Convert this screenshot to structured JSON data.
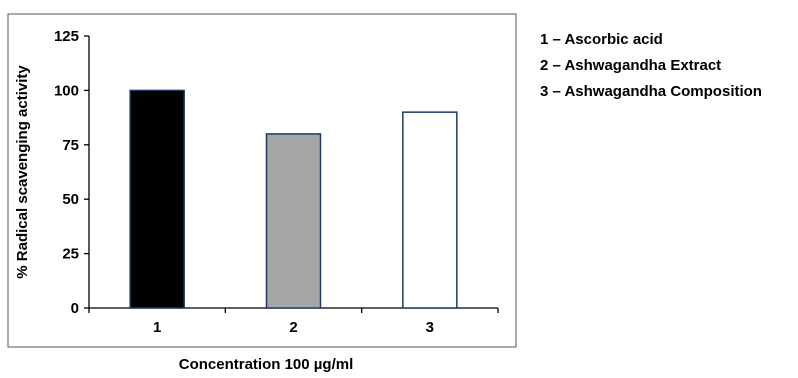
{
  "chart_data": {
    "type": "bar",
    "categories": [
      "1",
      "2",
      "3"
    ],
    "values": [
      100,
      80,
      90
    ],
    "ylabel": "% Radical scavenging activity",
    "xlabel": "Concentration 100 µg/ml",
    "ylim": [
      0,
      125
    ],
    "yticks": [
      0,
      25,
      50,
      75,
      100,
      125
    ],
    "grid": false,
    "legend_position": "right",
    "bar_colors": [
      "#000000",
      "#a6a6a6",
      "#ffffff"
    ],
    "bar_edge_color": "#1f3864",
    "legend": [
      "1 – Ascorbic acid",
      "2 – Ashwagandha Extract",
      "3 – Ashwagandha Composition"
    ]
  }
}
